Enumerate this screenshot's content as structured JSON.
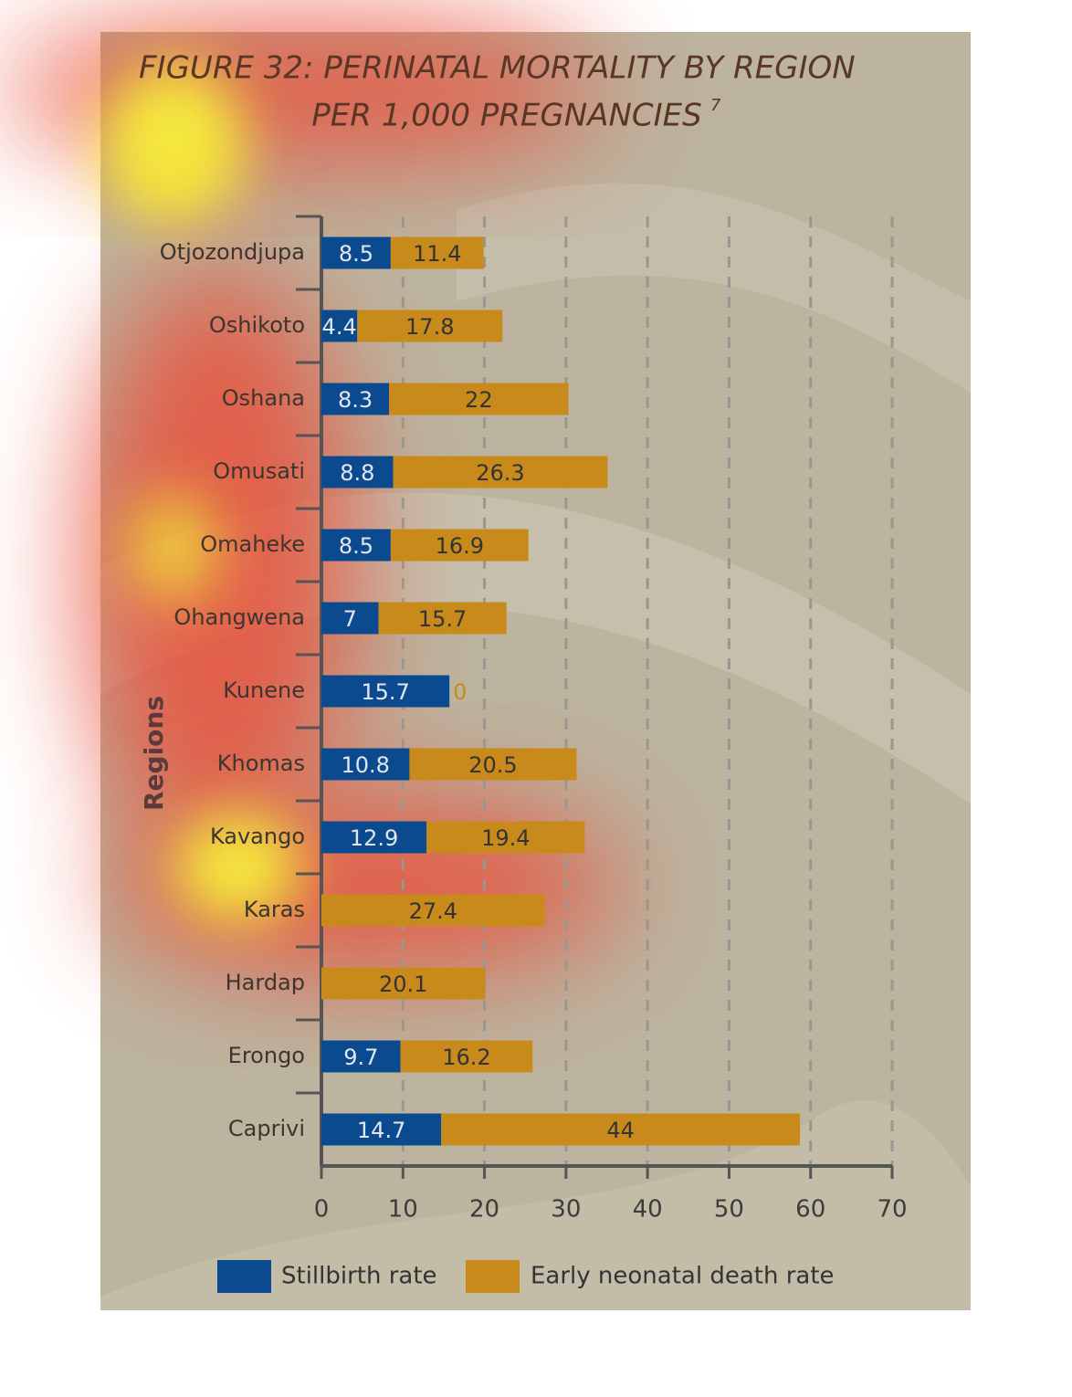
{
  "chart_data": {
    "type": "stacked-bar-horizontal",
    "title": "FIGURE 32: PERINATAL MORTALITY BY REGION",
    "subtitle": "PER 1,000 PREGNANCIES",
    "footnote_marker": "7",
    "y_label": "Regions",
    "categories": [
      "Otjozondjupa",
      "Oshikoto",
      "Oshana",
      "Omusati",
      "Omaheke",
      "Ohangwena",
      "Kunene",
      "Khomas",
      "Kavango",
      "Karas",
      "Hardap",
      "Erongo",
      "Caprivi"
    ],
    "series": [
      {
        "name": "Stillbirth rate",
        "color": "#0b4a8e",
        "values": [
          8.5,
          4.4,
          8.3,
          8.8,
          8.5,
          7,
          15.7,
          10.8,
          12.9,
          0,
          0,
          9.7,
          14.7
        ]
      },
      {
        "name": "Early neonatal death rate",
        "color": "#c98a1c",
        "values": [
          11.4,
          17.8,
          22,
          26.3,
          16.9,
          15.7,
          0,
          20.5,
          19.4,
          27.4,
          20.1,
          16.2,
          44
        ]
      }
    ],
    "xlim": [
      0,
      70
    ],
    "xticks": [
      0,
      10,
      20,
      30,
      40,
      50,
      60,
      70
    ],
    "grid": true,
    "legend": "bottom"
  }
}
